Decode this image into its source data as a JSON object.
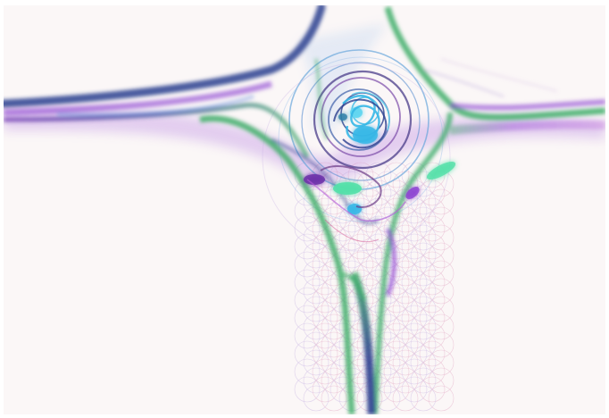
{
  "artwork": {
    "colors": {
      "background": "#fbf7f7",
      "green": "#3fae6a",
      "navy": "#2b3f8f",
      "violet": "#8a3fd1",
      "magenta": "#b65ad8",
      "cyan": "#36b7e6",
      "mint": "#52e0a8",
      "plum": "#6b3b86"
    }
  }
}
